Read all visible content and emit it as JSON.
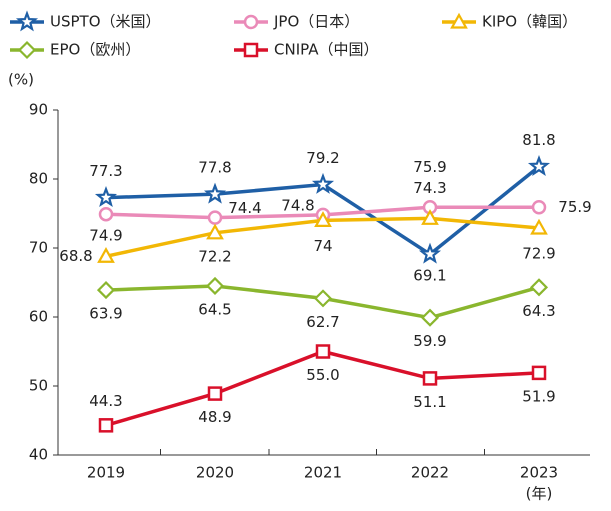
{
  "chart_data": {
    "type": "line",
    "y_label": "(%)",
    "x_label": "(年)",
    "categories": [
      "2019",
      "2020",
      "2021",
      "2022",
      "2023"
    ],
    "series": [
      {
        "name": "USPTO（米国）",
        "color": "#1f5fa6",
        "marker": "star",
        "values": [
          77.3,
          77.8,
          79.2,
          69.1,
          81.8
        ]
      },
      {
        "name": "JPO（日本）",
        "color": "#ea8ab8",
        "marker": "circle",
        "values": [
          74.9,
          74.4,
          74.8,
          75.9,
          75.9
        ]
      },
      {
        "name": "KIPO（韓国）",
        "color": "#f2b705",
        "marker": "triangle",
        "values": [
          68.8,
          72.2,
          74.0,
          74.3,
          72.9
        ]
      },
      {
        "name": "EPO（欧州）",
        "color": "#8ab62e",
        "marker": "diamond",
        "values": [
          63.9,
          64.5,
          62.7,
          59.9,
          64.3
        ]
      },
      {
        "name": "CNIPA（中国）",
        "color": "#d9102a",
        "marker": "square",
        "values": [
          44.3,
          48.9,
          55.0,
          51.1,
          51.9
        ],
        "value_labels": [
          "44.3",
          "48.9",
          "55.0",
          "51.1",
          "51.9"
        ]
      }
    ],
    "ylim": [
      40,
      90
    ],
    "yticks": [
      40,
      50,
      60,
      70,
      80,
      90
    ],
    "grid": false,
    "legend": "top"
  }
}
